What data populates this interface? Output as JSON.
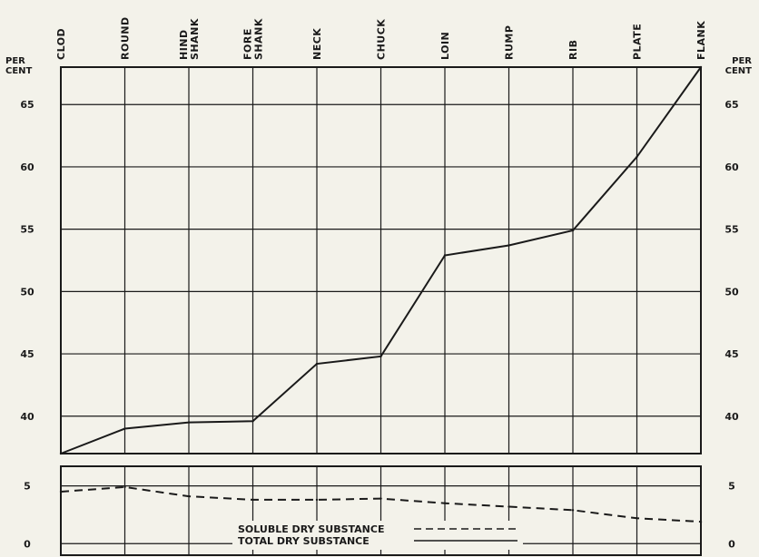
{
  "chart_data": {
    "type": "line",
    "categories": [
      "CLOD",
      "ROUND",
      "HIND SHANK",
      "FORE SHANK",
      "NECK",
      "CHUCK",
      "LOIN",
      "RUMP",
      "RIB",
      "PLATE",
      "FLANK"
    ],
    "unit_label": "PER CENT",
    "panels": [
      {
        "name": "upper",
        "ylim": [
          37,
          68
        ],
        "yticks": [
          40,
          45,
          50,
          55,
          60,
          65
        ],
        "series": [
          {
            "legend_key": "total",
            "style": "solid",
            "values": [
              37.0,
              39.0,
              39.5,
              39.6,
              44.2,
              44.8,
              52.9,
              53.7,
              54.9,
              60.8,
              68.0
            ]
          }
        ]
      },
      {
        "name": "lower",
        "ylim": [
          -1,
          6.7
        ],
        "yticks": [
          0,
          5
        ],
        "series": [
          {
            "legend_key": "soluble",
            "style": "dashed",
            "values": [
              4.5,
              4.9,
              4.1,
              3.8,
              3.8,
              3.9,
              3.5,
              3.2,
              2.9,
              2.2,
              1.9
            ]
          }
        ]
      }
    ],
    "legend": {
      "placement": "bottom-center",
      "entries": [
        {
          "key": "soluble",
          "label": "SOLUBLE  DRY  SUBSTANCE",
          "style": "dashed"
        },
        {
          "key": "total",
          "label": "TOTAL  DRY  SUBSTANCE",
          "style": "solid"
        }
      ]
    },
    "grid": true,
    "colors": {
      "background": "#f3f2ea",
      "ink": "#1a1a1a"
    }
  }
}
